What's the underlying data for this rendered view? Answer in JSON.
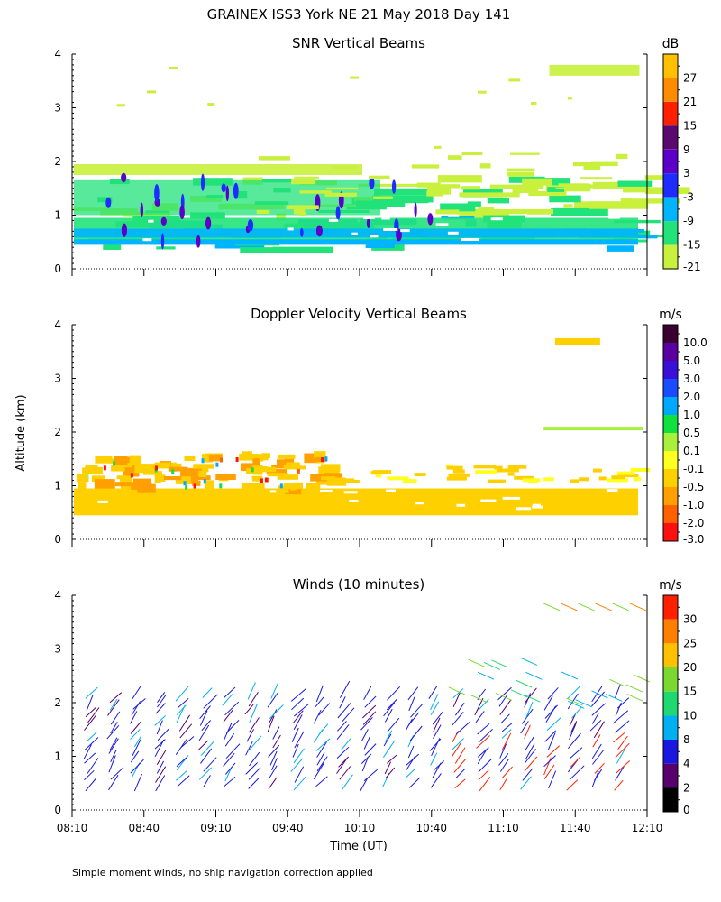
{
  "figure": {
    "title": "GRAINEX ISS3 York NE  21 May 2018 Day 141",
    "ylabel": "Altitude (km)",
    "xlabel": "Time (UT)",
    "footnote": "Simple moment winds, no ship navigation correction applied"
  },
  "chart_data": [
    {
      "type": "heatmap",
      "title": "SNR Vertical Beams",
      "x_ticks": [
        "08:10",
        "08:40",
        "09:10",
        "09:40",
        "10:10",
        "10:40",
        "11:10",
        "11:40",
        "12:10"
      ],
      "y_ticks": [
        "0",
        "1",
        "2",
        "3",
        "4"
      ],
      "ylim": [
        0,
        4
      ],
      "colorbar": {
        "unit": "dB",
        "labels": [
          "27",
          "21",
          "15",
          "9",
          "3",
          "-3",
          "-9",
          "-15",
          "-21"
        ],
        "colors": [
          "#ffc000",
          "#ff8c00",
          "#ff2000",
          "#5a0a6e",
          "#5a00c8",
          "#1e2cff",
          "#00b4ff",
          "#22e27a",
          "#c8f03c"
        ]
      }
    },
    {
      "type": "heatmap",
      "title": "Doppler Velocity Vertical Beams",
      "x_ticks": [
        "08:10",
        "08:40",
        "09:10",
        "09:40",
        "10:10",
        "10:40",
        "11:10",
        "11:40",
        "12:10"
      ],
      "y_ticks": [
        "0",
        "1",
        "2",
        "3",
        "4"
      ],
      "ylim": [
        0,
        4
      ],
      "colorbar": {
        "unit": "m/s",
        "labels": [
          "10.0",
          "5.0",
          "3.0",
          "2.0",
          "1.0",
          "0.5",
          "0.1",
          "-0.1",
          "-0.5",
          "-1.0",
          "-2.0",
          "-3.0"
        ],
        "colors": [
          "#3a0030",
          "#5a00a0",
          "#3a10d8",
          "#1a4cff",
          "#00a8ff",
          "#10e040",
          "#a8f03c",
          "#ffff20",
          "#ffd000",
          "#ffa000",
          "#ff6000",
          "#ff1010"
        ]
      }
    },
    {
      "type": "scatter",
      "title": "Winds (10 minutes)",
      "x_ticks": [
        "08:10",
        "08:40",
        "09:10",
        "09:40",
        "10:10",
        "10:40",
        "11:10",
        "11:40",
        "12:10"
      ],
      "y_ticks": [
        "0",
        "1",
        "2",
        "3",
        "4"
      ],
      "ylim": [
        0,
        4
      ],
      "colorbar": {
        "unit": "m/s",
        "labels": [
          "30",
          "25",
          "20",
          "15",
          "10",
          "8",
          "4",
          "2",
          "0"
        ],
        "colors": [
          "#ff2000",
          "#ff8000",
          "#ffc000",
          "#7ad830",
          "#20d870",
          "#00b0f0",
          "#1818e0",
          "#58006e",
          "#000000"
        ]
      }
    }
  ]
}
